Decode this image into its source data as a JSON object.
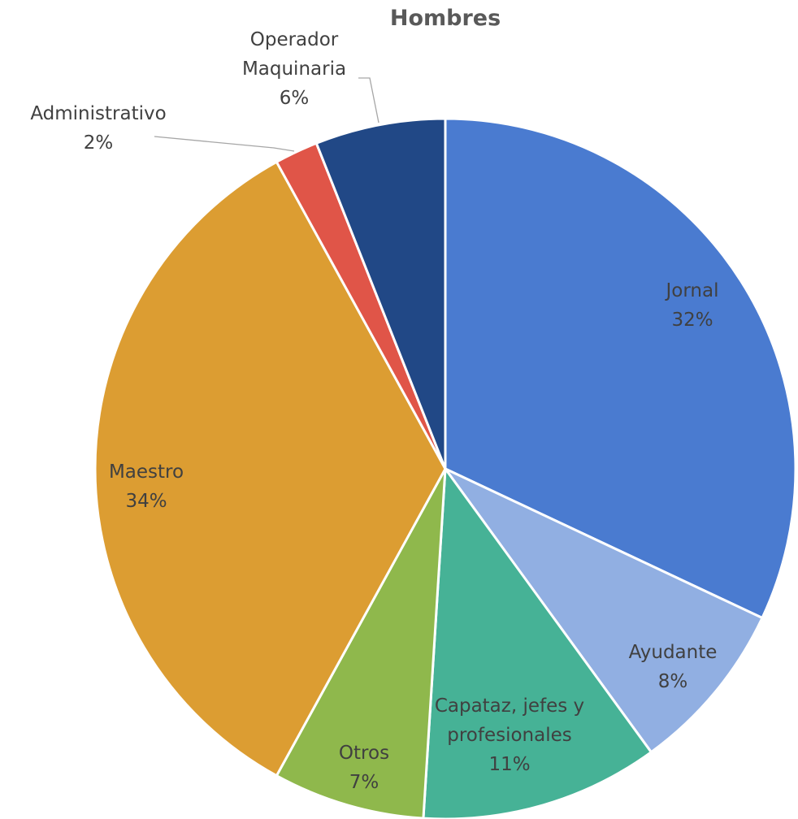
{
  "chart_data": {
    "type": "pie",
    "title": "Hombres",
    "slices": [
      {
        "name": "Jornal",
        "value": 32,
        "label": "32%",
        "color": "#4a7bd0"
      },
      {
        "name": "Ayudante",
        "value": 8,
        "label": "8%",
        "color": "#91afe2"
      },
      {
        "name": "Capataz, jefes y profesionales",
        "name_lines": [
          "Capataz, jefes y",
          "profesionales"
        ],
        "value": 11,
        "label": "11%",
        "color": "#46b296"
      },
      {
        "name": "Otros",
        "value": 7,
        "label": "7%",
        "color": "#8fb84c"
      },
      {
        "name": "Maestro",
        "value": 34,
        "label": "34%",
        "color": "#dc9d32"
      },
      {
        "name": "Administrativo",
        "value": 2,
        "label": "2%",
        "color": "#e05548"
      },
      {
        "name": "Operador Maquinaria",
        "name_lines": [
          "Operador",
          "Maquinaria"
        ],
        "value": 6,
        "label": "6%",
        "color": "#214886"
      }
    ],
    "start_angle_deg": 0,
    "direction": "clockwise",
    "legend": "none"
  }
}
